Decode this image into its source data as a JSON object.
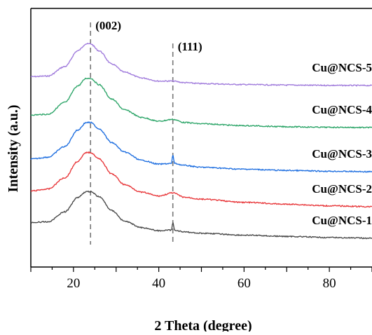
{
  "chart_data": {
    "type": "line",
    "title": "",
    "xlabel": "2 Theta (degree)",
    "ylabel": "Intensity (a.u.)",
    "xlim": [
      10,
      90
    ],
    "x_ticks": [
      20,
      40,
      60,
      80
    ],
    "y_ticks_shown": false,
    "grid": false,
    "legend": "series labels printed at right end of each curve",
    "peaks": [
      {
        "label": "(002)",
        "x": 24
      },
      {
        "label": "(111)",
        "x": 43.3
      }
    ],
    "series": [
      {
        "name": "Cu@NCS-5",
        "color": "#a07bdc",
        "offset": 4,
        "points": [
          [
            10,
            0.14
          ],
          [
            14,
            0.15
          ],
          [
            18,
            0.3
          ],
          [
            21,
            0.55
          ],
          [
            23,
            0.66
          ],
          [
            24,
            0.66
          ],
          [
            26,
            0.55
          ],
          [
            29,
            0.34
          ],
          [
            32,
            0.21
          ],
          [
            36,
            0.12
          ],
          [
            40,
            0.07
          ],
          [
            43.3,
            0.07
          ],
          [
            46,
            0.045
          ],
          [
            50,
            0.03
          ],
          [
            60,
            0.015
          ],
          [
            70,
            0.007
          ],
          [
            80,
            0.002
          ],
          [
            90,
            0
          ]
        ]
      },
      {
        "name": "Cu@NCS-4",
        "color": "#2fa66a",
        "offset": 3,
        "points": [
          [
            10,
            0.2
          ],
          [
            14,
            0.21
          ],
          [
            18,
            0.4
          ],
          [
            21,
            0.66
          ],
          [
            23,
            0.78
          ],
          [
            24,
            0.78
          ],
          [
            26,
            0.68
          ],
          [
            29,
            0.45
          ],
          [
            32,
            0.28
          ],
          [
            36,
            0.16
          ],
          [
            40,
            0.1
          ],
          [
            43.3,
            0.13
          ],
          [
            46,
            0.08
          ],
          [
            50,
            0.06
          ],
          [
            60,
            0.03
          ],
          [
            70,
            0.013
          ],
          [
            80,
            0.004
          ],
          [
            90,
            0
          ]
        ]
      },
      {
        "name": "Cu@NCS-3",
        "color": "#1f6fe0",
        "offset": 2,
        "points": [
          [
            10,
            0.2
          ],
          [
            14,
            0.23
          ],
          [
            18,
            0.4
          ],
          [
            21,
            0.66
          ],
          [
            23,
            0.78
          ],
          [
            24,
            0.78
          ],
          [
            26,
            0.68
          ],
          [
            29,
            0.46
          ],
          [
            32,
            0.31
          ],
          [
            36,
            0.18
          ],
          [
            40,
            0.12
          ],
          [
            43.0,
            0.13
          ],
          [
            43.3,
            0.27
          ],
          [
            43.7,
            0.13
          ],
          [
            46,
            0.1
          ],
          [
            50,
            0.07
          ],
          [
            60,
            0.04
          ],
          [
            70,
            0.02
          ],
          [
            80,
            0.007
          ],
          [
            90,
            0
          ]
        ]
      },
      {
        "name": "Cu@NCS-2",
        "color": "#e8383b",
        "offset": 1,
        "points": [
          [
            10,
            0.25
          ],
          [
            14,
            0.28
          ],
          [
            18,
            0.46
          ],
          [
            21,
            0.72
          ],
          [
            23,
            0.86
          ],
          [
            24,
            0.86
          ],
          [
            26,
            0.76
          ],
          [
            29,
            0.52
          ],
          [
            32,
            0.35
          ],
          [
            36,
            0.23
          ],
          [
            40,
            0.17
          ],
          [
            43.3,
            0.22
          ],
          [
            46,
            0.15
          ],
          [
            50,
            0.12
          ],
          [
            60,
            0.07
          ],
          [
            70,
            0.04
          ],
          [
            80,
            0.015
          ],
          [
            90,
            0
          ]
        ]
      },
      {
        "name": "Cu@NCS-1",
        "color": "#4a4a4a",
        "offset": 0,
        "points": [
          [
            10,
            0.25
          ],
          [
            14,
            0.26
          ],
          [
            18,
            0.42
          ],
          [
            21,
            0.65
          ],
          [
            23,
            0.74
          ],
          [
            24,
            0.74
          ],
          [
            26,
            0.66
          ],
          [
            29,
            0.44
          ],
          [
            32,
            0.27
          ],
          [
            36,
            0.17
          ],
          [
            40,
            0.12
          ],
          [
            43.0,
            0.13
          ],
          [
            43.3,
            0.25
          ],
          [
            43.7,
            0.13
          ],
          [
            46,
            0.1
          ],
          [
            50,
            0.08
          ],
          [
            60,
            0.05
          ],
          [
            70,
            0.03
          ],
          [
            80,
            0.012
          ],
          [
            90,
            0
          ]
        ]
      }
    ]
  }
}
